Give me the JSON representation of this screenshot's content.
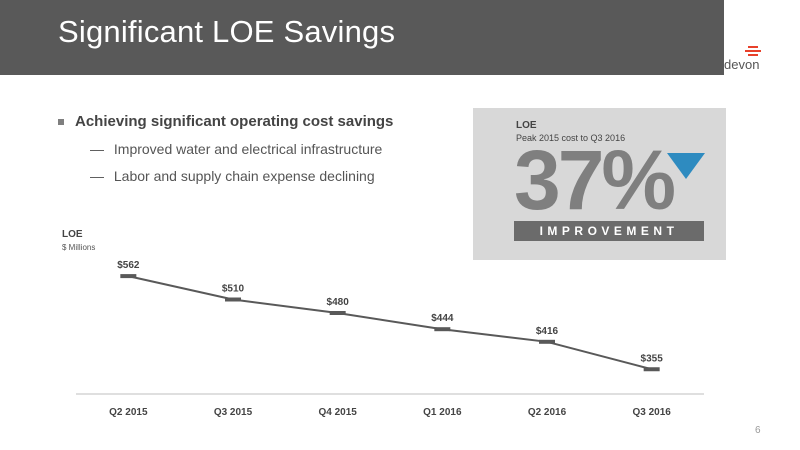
{
  "header": {
    "title": "Significant LOE Savings"
  },
  "logo": {
    "text": "devon"
  },
  "bullets": {
    "main": "Achieving significant operating cost savings",
    "subs": [
      "Improved water and electrical infrastructure",
      "Labor and supply chain expense declining"
    ],
    "dash": "—"
  },
  "panel": {
    "title": "LOE",
    "subtitle": "Peak 2015 cost to Q3 2016",
    "value": "37%",
    "label": "IMPROVEMENT",
    "accent": "#2e8bc0"
  },
  "chart_data": {
    "type": "line",
    "title": "LOE",
    "ylabel": "$ Millions",
    "categories": [
      "Q2 2015",
      "Q3 2015",
      "Q4 2015",
      "Q1 2016",
      "Q2 2016",
      "Q3 2016"
    ],
    "series": [
      {
        "values": [
          562,
          510,
          480,
          444,
          416,
          355
        ]
      }
    ],
    "data_labels": [
      "$562",
      "$510",
      "$480",
      "$444",
      "$416",
      "$355"
    ],
    "ylim": [
      300,
      600
    ],
    "grid": false,
    "line_color": "#595959"
  },
  "page": {
    "number": "6"
  }
}
